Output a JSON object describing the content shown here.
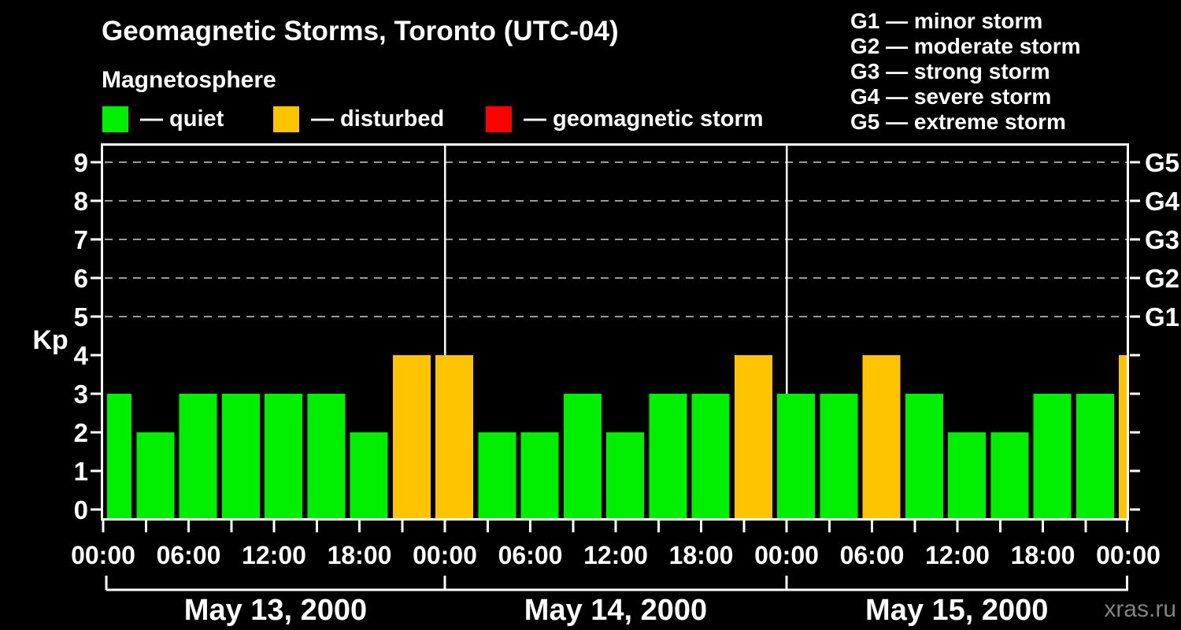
{
  "header": {
    "title": "Geomagnetic Storms, Toronto (UTC-04)",
    "subtitle": "Magnetosphere"
  },
  "legend": {
    "items": [
      {
        "label": "— quiet",
        "color": "#00ee00"
      },
      {
        "label": "— disturbed",
        "color": "#ffc400"
      },
      {
        "label": "— geomagnetic storm",
        "color": "#ff0000"
      }
    ]
  },
  "storm_scale_legend": {
    "items": [
      "G1 — minor storm",
      "G2 — moderate storm",
      "G3 — strong storm",
      "G4 — severe storm",
      "G5 — extreme storm"
    ]
  },
  "watermark": "xras.ru",
  "chart_data": {
    "type": "bar",
    "title": "Geomagnetic Storms, Toronto (UTC-04)",
    "ylabel": "Kp",
    "ylim": [
      0,
      9
    ],
    "y_ticks": [
      0,
      1,
      2,
      3,
      4,
      5,
      6,
      7,
      8,
      9
    ],
    "grid_on": true,
    "grid_levels": [
      {
        "kp": 5,
        "label": "G1"
      },
      {
        "kp": 6,
        "label": "G2"
      },
      {
        "kp": 7,
        "label": "G3"
      },
      {
        "kp": 8,
        "label": "G4"
      },
      {
        "kp": 9,
        "label": "G5"
      }
    ],
    "interval_hours": 3,
    "x_hour_label_step": 6,
    "x_hour_labels_cycle": [
      "00:00",
      "06:00",
      "12:00",
      "18:00"
    ],
    "days": [
      {
        "date": "May 13, 2000",
        "kp": [
          3,
          2,
          3,
          3,
          3,
          3,
          2,
          4
        ]
      },
      {
        "date": "May 14, 2000",
        "kp": [
          4,
          2,
          2,
          3,
          2,
          3,
          3,
          4
        ]
      },
      {
        "date": "May 15, 2000",
        "kp": [
          3,
          3,
          4,
          3,
          2,
          2,
          3,
          3
        ]
      }
    ],
    "trailing_partial_bar_kp": 4,
    "colors": {
      "quiet": "#00ee00",
      "disturbed": "#ffc400",
      "storm": "#ff0000"
    },
    "color_rules": {
      "disturbed_min_kp": 4,
      "storm_min_kp": 5
    }
  }
}
